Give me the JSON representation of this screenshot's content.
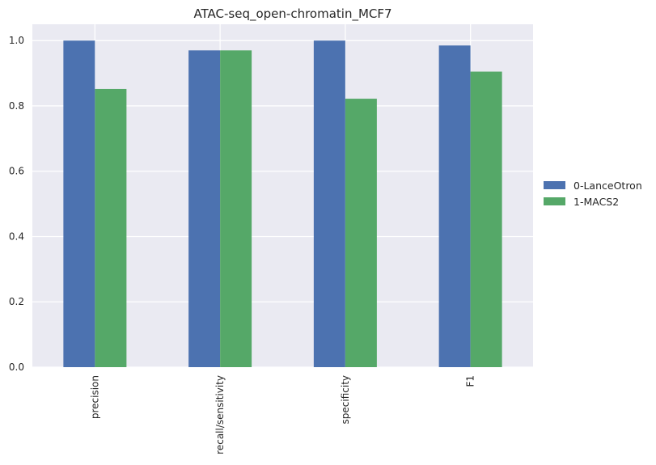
{
  "chart_data": {
    "type": "bar",
    "title": "ATAC-seq_open-chromatin_MCF7",
    "xlabel": "",
    "ylabel": "",
    "categories": [
      "precision",
      "recall/sensitivity",
      "specificity",
      "F1"
    ],
    "series": [
      {
        "name": "0-LanceOtron",
        "color": "#4c72b0",
        "values": [
          1.0,
          0.97,
          1.0,
          0.985
        ]
      },
      {
        "name": "1-MACS2",
        "color": "#55a868",
        "values": [
          0.852,
          0.97,
          0.822,
          0.905
        ]
      }
    ],
    "yticks": [
      "0.0",
      "0.2",
      "0.4",
      "0.6",
      "0.8",
      "1.0"
    ],
    "ylim": [
      0,
      1.05
    ],
    "grid": true,
    "legend_position": "right",
    "plot_background": "#eaeaf2",
    "grid_color": "#ffffff"
  }
}
